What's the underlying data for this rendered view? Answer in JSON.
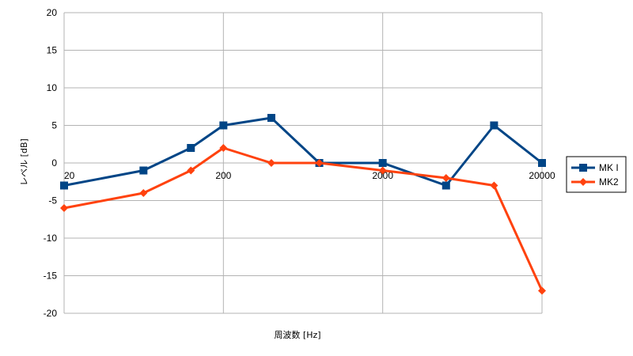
{
  "chart_data": {
    "type": "line",
    "title": "",
    "xlabel": "周波数 [Hz]",
    "ylabel": "レベル [dB]",
    "x_scale": "log",
    "xlim": [
      20,
      20000
    ],
    "ylim": [
      -20,
      20
    ],
    "x_ticks": [
      20,
      200,
      2000,
      20000
    ],
    "x_tick_labels": [
      "20",
      "200",
      "2000",
      "20000"
    ],
    "y_ticks": [
      20,
      15,
      10,
      5,
      0,
      -5,
      -10,
      -15,
      -20
    ],
    "y_tick_labels": [
      "20",
      "15",
      "10",
      "5",
      "0",
      "-5",
      "-10",
      "-15",
      "-20"
    ],
    "grid": true,
    "legend_position": "right",
    "x": [
      20,
      63,
      125,
      200,
      400,
      800,
      2000,
      5000,
      10000,
      20000
    ],
    "series": [
      {
        "name": "MK I",
        "color": "#004586",
        "marker": "square",
        "values": [
          -3,
          -1,
          2,
          5,
          6,
          0,
          0,
          -3,
          5,
          0
        ]
      },
      {
        "name": "MK2",
        "color": "#ff420e",
        "marker": "diamond",
        "values": [
          -6,
          -4,
          -1,
          2,
          0,
          0,
          -1,
          -2,
          -3,
          -17
        ]
      }
    ]
  }
}
